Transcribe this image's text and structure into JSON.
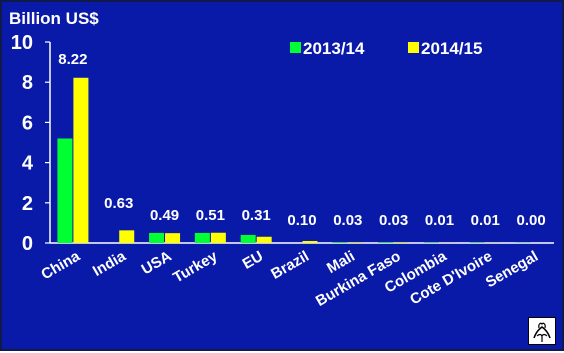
{
  "chart_data": {
    "type": "bar",
    "title": "",
    "ylabel": "Billion US$",
    "xlabel": "",
    "ylim": [
      0,
      10
    ],
    "yticks": [
      0,
      2,
      4,
      6,
      8,
      10
    ],
    "grid": false,
    "legend_position": "top-right",
    "categories": [
      "China",
      "India",
      "USA",
      "Turkey",
      "EU",
      "Brazil",
      "Mali",
      "Burkina Faso",
      "Colombia",
      "Cote D'Ivoire",
      "Senegal"
    ],
    "series": [
      {
        "name": "2013/14",
        "color": "#00ff33",
        "values": [
          5.2,
          0.0,
          0.5,
          0.5,
          0.4,
          0.0,
          0.03,
          0.03,
          0.02,
          0.02,
          0.01
        ]
      },
      {
        "name": "2014/15",
        "color": "#ffff00",
        "values": [
          8.22,
          0.63,
          0.49,
          0.51,
          0.31,
          0.1,
          0.03,
          0.03,
          0.01,
          0.01,
          0.0
        ]
      }
    ],
    "data_labels": [
      "8.22",
      "0.63",
      "0.49",
      "0.51",
      "0.31",
      "0.10",
      "0.03",
      "0.03",
      "0.01",
      "0.01",
      "0.00"
    ],
    "colors": {
      "background": "#0a1aa8",
      "axis": "#ffffff",
      "text": "#ffffff"
    }
  },
  "logo": {
    "icon": "cotton-boll-icon"
  }
}
